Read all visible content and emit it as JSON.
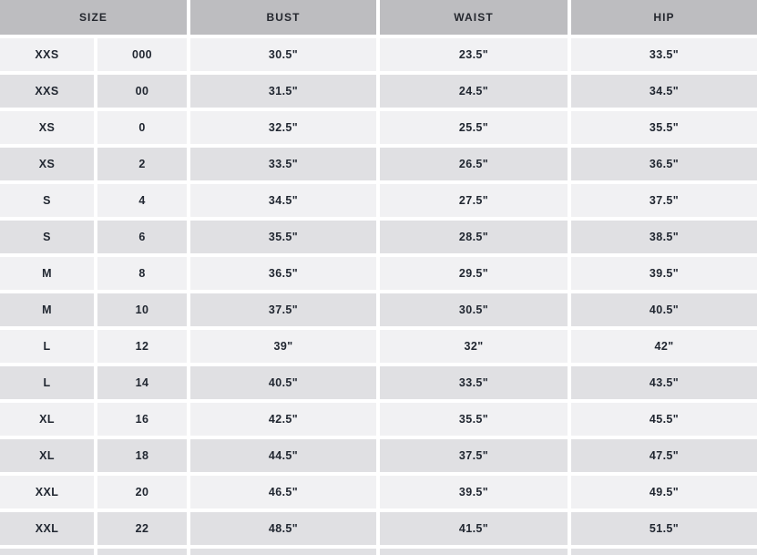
{
  "colors": {
    "header_bg": "#bdbdc0",
    "row_light_bg": "#f1f1f3",
    "row_dark_bg": "#e0e0e3",
    "gutter": "#ffffff",
    "text": "#212731"
  },
  "table": {
    "headers": [
      {
        "label": "SIZE",
        "span": 2
      },
      {
        "label": "BUST",
        "span": 1
      },
      {
        "label": "WAIST",
        "span": 1
      },
      {
        "label": "HIP",
        "span": 1
      }
    ],
    "rows": [
      {
        "size_alpha": "XXS",
        "size_num": "000",
        "bust": "30.5\"",
        "waist": "23.5\"",
        "hip": "33.5\""
      },
      {
        "size_alpha": "XXS",
        "size_num": "00",
        "bust": "31.5\"",
        "waist": "24.5\"",
        "hip": "34.5\""
      },
      {
        "size_alpha": "XS",
        "size_num": "0",
        "bust": "32.5\"",
        "waist": "25.5\"",
        "hip": "35.5\""
      },
      {
        "size_alpha": "XS",
        "size_num": "2",
        "bust": "33.5\"",
        "waist": "26.5\"",
        "hip": "36.5\""
      },
      {
        "size_alpha": "S",
        "size_num": "4",
        "bust": "34.5\"",
        "waist": "27.5\"",
        "hip": "37.5\""
      },
      {
        "size_alpha": "S",
        "size_num": "6",
        "bust": "35.5\"",
        "waist": "28.5\"",
        "hip": "38.5\""
      },
      {
        "size_alpha": "M",
        "size_num": "8",
        "bust": "36.5\"",
        "waist": "29.5\"",
        "hip": "39.5\""
      },
      {
        "size_alpha": "M",
        "size_num": "10",
        "bust": "37.5\"",
        "waist": "30.5\"",
        "hip": "40.5\""
      },
      {
        "size_alpha": "L",
        "size_num": "12",
        "bust": "39\"",
        "waist": "32\"",
        "hip": "42\""
      },
      {
        "size_alpha": "L",
        "size_num": "14",
        "bust": "40.5\"",
        "waist": "33.5\"",
        "hip": "43.5\""
      },
      {
        "size_alpha": "XL",
        "size_num": "16",
        "bust": "42.5\"",
        "waist": "35.5\"",
        "hip": "45.5\""
      },
      {
        "size_alpha": "XL",
        "size_num": "18",
        "bust": "44.5\"",
        "waist": "37.5\"",
        "hip": "47.5\""
      },
      {
        "size_alpha": "XXL",
        "size_num": "20",
        "bust": "46.5\"",
        "waist": "39.5\"",
        "hip": "49.5\""
      },
      {
        "size_alpha": "XXL",
        "size_num": "22",
        "bust": "48.5\"",
        "waist": "41.5\"",
        "hip": "51.5\""
      }
    ]
  }
}
